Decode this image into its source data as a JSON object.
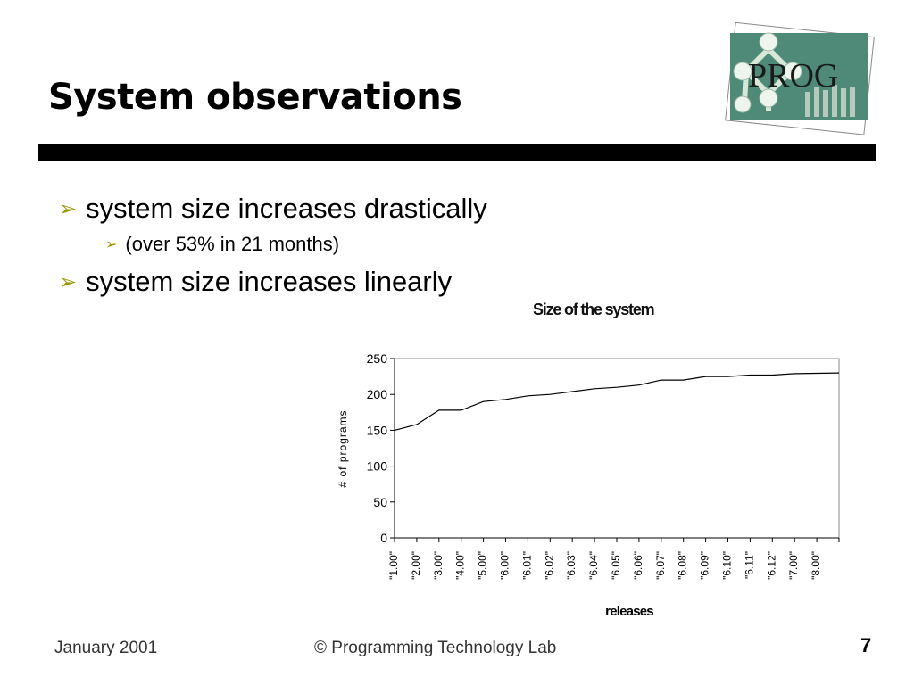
{
  "slide": {
    "title": "System observations",
    "logo_text": "PROG",
    "bullets": [
      {
        "text": "system size increases drastically",
        "level": 1
      },
      {
        "text": "(over 53% in 21 months)",
        "level": 2
      },
      {
        "text": "system size increases linearly",
        "level": 1
      }
    ],
    "footer_date": "January 2001",
    "footer_org": "© Programming Technology Lab",
    "page_number": "7",
    "accent_color": "#9a9500"
  },
  "chart_data": {
    "type": "line",
    "title": "Size of the system",
    "xlabel": "releases",
    "ylabel": "# of programs",
    "categories": [
      "\"1.00\"",
      "\"2.00\"",
      "\"3.00\"",
      "\"4.00\"",
      "\"5.00\"",
      "\"6.00\"",
      "\"6.01\"",
      "\"6.02\"",
      "\"6.03\"",
      "\"6.04\"",
      "\"6.05\"",
      "\"6.06\"",
      "\"6.07\"",
      "\"6.08\"",
      "\"6.09\"",
      "\"6.10\"",
      "\"6.11\"",
      "\"6.12\"",
      "\"7.00\"",
      "\"8.00\""
    ],
    "values": [
      150,
      158,
      178,
      178,
      190,
      193,
      198,
      200,
      204,
      208,
      210,
      213,
      220,
      220,
      225,
      225,
      227,
      227,
      229,
      230
    ],
    "yticks": [
      0,
      50,
      100,
      150,
      200,
      250
    ],
    "ytick_labels": [
      "0",
      "50",
      "100",
      "150",
      "200",
      "250"
    ],
    "ylim": [
      0,
      250
    ],
    "grid": false,
    "legend": false,
    "line_color": "#000000"
  }
}
